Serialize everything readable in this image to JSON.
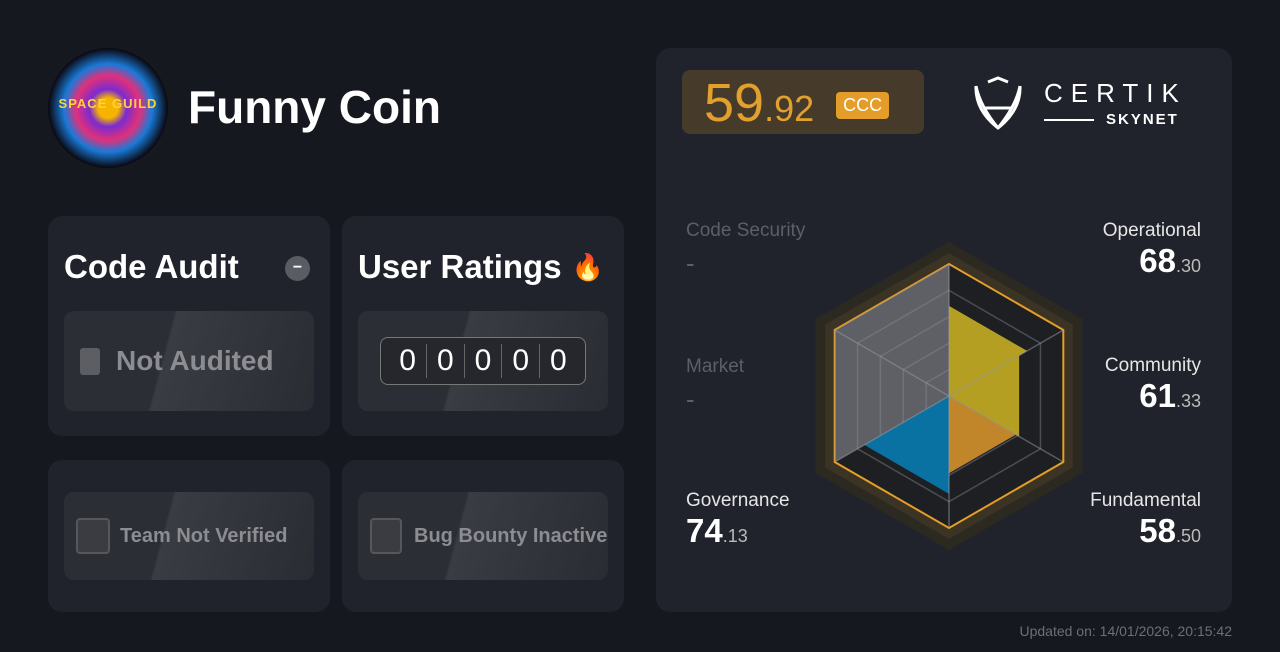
{
  "project": {
    "name": "Funny Coin",
    "logo_text": "SPACE GUILD"
  },
  "code_audit": {
    "title": "Code Audit",
    "status": "Not Audited",
    "status_icon": "minus-circle-icon"
  },
  "user_ratings": {
    "title": "User Ratings",
    "icon": "fire-icon",
    "digits": [
      "0",
      "0",
      "0",
      "0",
      "0"
    ]
  },
  "team": {
    "label": "Team Not Verified"
  },
  "bug_bounty": {
    "label": "Bug Bounty Inactive"
  },
  "score": {
    "integer": "59",
    "decimal": ".92",
    "grade": "CCC",
    "color": "#e39d28"
  },
  "brand": {
    "name": "CERTIK",
    "sub": "SKYNET"
  },
  "categories": [
    {
      "key": "code_security",
      "label": "Code Security",
      "int": "-",
      "dec": "",
      "value": null
    },
    {
      "key": "operational",
      "label": "Operational",
      "int": "68",
      "dec": ".30",
      "value": 68.3,
      "color": "#b59f23"
    },
    {
      "key": "market",
      "label": "Market",
      "int": "-",
      "dec": "",
      "value": null
    },
    {
      "key": "community",
      "label": "Community",
      "int": "61",
      "dec": ".33",
      "value": 61.33,
      "color": "#b59f23"
    },
    {
      "key": "governance",
      "label": "Governance",
      "int": "74",
      "dec": ".13",
      "value": 74.13,
      "color": "#0a71a3"
    },
    {
      "key": "fundamental",
      "label": "Fundamental",
      "int": "58",
      "dec": ".50",
      "value": 58.5,
      "color": "#c1862a"
    }
  ],
  "updated": "Updated on: 14/01/2026, 20:15:42"
}
